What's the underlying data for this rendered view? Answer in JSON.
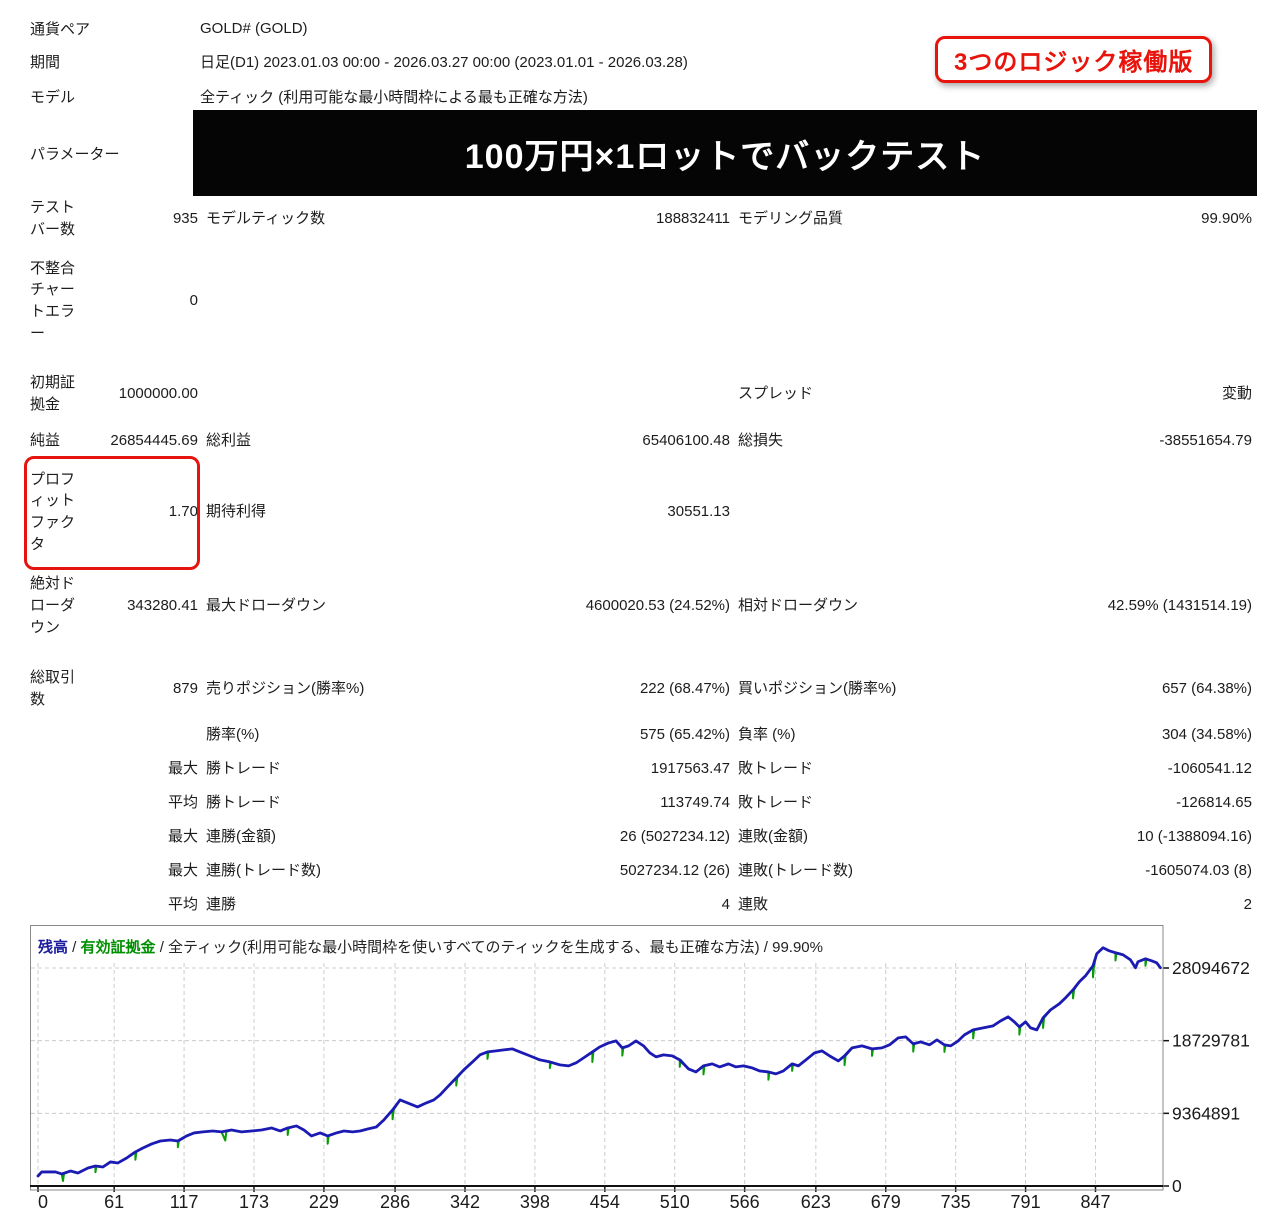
{
  "annotations": {
    "badge": "3つのロジック稼働版",
    "banner": "100万円×1ロットでバックテスト"
  },
  "header": {
    "rows": [
      {
        "label": "通貨ペア",
        "value": "GOLD# (GOLD)"
      },
      {
        "label": "期間",
        "value": "日足(D1) 2023.01.03 00:00 - 2026.03.27 00:00 (2023.01.01 - 2026.03.28)"
      },
      {
        "label": "モデル",
        "value": "全ティック (利用可能な最小時間枠による最も正確な方法)"
      },
      {
        "label": "パラメーター",
        "value": ""
      }
    ]
  },
  "stats": {
    "rows": [
      {
        "l1": "テストバー数",
        "v1": "935",
        "l2": "モデルティック数",
        "v2": "188832411",
        "l3": "モデリング品質",
        "v3": "99.90%"
      },
      {
        "l1": "不整合チャートエラー",
        "v1": "0",
        "l2": "",
        "v2": "",
        "l3": "",
        "v3": ""
      },
      {
        "l1": "初期証拠金",
        "v1": "1000000.00",
        "l2": "",
        "v2": "",
        "l3": "スプレッド",
        "v3": "変動"
      },
      {
        "l1": "純益",
        "v1": "26854445.69",
        "l2": "総利益",
        "v2": "65406100.48",
        "l3": "総損失",
        "v3": "-38551654.79"
      },
      {
        "l1": "プロフィットファクタ",
        "v1": "1.70",
        "l2": "期待利得",
        "v2": "30551.13",
        "l3": "",
        "v3": ""
      },
      {
        "l1": "絶対ドローダウン",
        "v1": "343280.41",
        "l2": "最大ドローダウン",
        "v2": "4600020.53 (24.52%)",
        "l3": "相対ドローダウン",
        "v3": "42.59% (1431514.19)"
      },
      {
        "l1": "総取引数",
        "v1": "879",
        "l2": "売りポジション(勝率%)",
        "v2": "222 (68.47%)",
        "l3": "買いポジション(勝率%)",
        "v3": "657 (64.38%)"
      },
      {
        "l1": "",
        "v1": "",
        "l2": "勝率(%)",
        "v2": "575 (65.42%)",
        "l3": "負率 (%)",
        "v3": "304 (34.58%)"
      },
      {
        "l1": "",
        "v1": "最大",
        "l2": "勝トレード",
        "v2": "1917563.47",
        "l3": "敗トレード",
        "v3": "-1060541.12"
      },
      {
        "l1": "",
        "v1": "平均",
        "l2": "勝トレード",
        "v2": "113749.74",
        "l3": "敗トレード",
        "v3": "-126814.65"
      },
      {
        "l1": "",
        "v1": "最大",
        "l2": "連勝(金額)",
        "v2": "26 (5027234.12)",
        "l3": "連敗(金額)",
        "v3": "10 (-1388094.16)"
      },
      {
        "l1": "",
        "v1": "最大",
        "l2": "連勝(トレード数)",
        "v2": "5027234.12 (26)",
        "l3": "連敗(トレード数)",
        "v3": "-1605074.03 (8)"
      },
      {
        "l1": "",
        "v1": "平均",
        "l2": "連勝",
        "v2": "4",
        "l3": "連敗",
        "v3": "2"
      }
    ]
  },
  "chart_data": {
    "type": "line",
    "legend": {
      "balance_label": "残高",
      "sep1": " / ",
      "equity_label": "有効証拠金",
      "rest": " / 全ティック(利用可能な最小時間枠を使いすべてのティックを生成する、最も正確な方法) / 99.90%"
    },
    "colors": {
      "balance": "#1b1bb3",
      "equity": "#089b08",
      "grid": "#cccccc",
      "axis": "#111111",
      "border": "#8a8a8a",
      "legend_balance": "#1c1c9e",
      "legend_equity": "#008f00"
    },
    "x_ticks": [
      0,
      61,
      117,
      173,
      229,
      286,
      342,
      398,
      454,
      510,
      566,
      623,
      679,
      735,
      791,
      847
    ],
    "y_ticks": [
      0,
      9364891,
      18729781,
      28094672
    ],
    "x_max_bars": 935,
    "series": [
      {
        "name": "残高",
        "points": [
          [
            0,
            1290000
          ],
          [
            3,
            1810000
          ],
          [
            14,
            1810000
          ],
          [
            19,
            1550000
          ],
          [
            26,
            1930000
          ],
          [
            32,
            1680000
          ],
          [
            40,
            2320000
          ],
          [
            46,
            2580000
          ],
          [
            52,
            2450000
          ],
          [
            58,
            3100000
          ],
          [
            64,
            2970000
          ],
          [
            71,
            3610000
          ],
          [
            78,
            4390000
          ],
          [
            84,
            4900000
          ],
          [
            91,
            5420000
          ],
          [
            98,
            5800000
          ],
          [
            106,
            5930000
          ],
          [
            112,
            5800000
          ],
          [
            119,
            6450000
          ],
          [
            125,
            6840000
          ],
          [
            132,
            6970000
          ],
          [
            140,
            7090000
          ],
          [
            147,
            6970000
          ],
          [
            155,
            7220000
          ],
          [
            163,
            6970000
          ],
          [
            171,
            7090000
          ],
          [
            179,
            7220000
          ],
          [
            187,
            7480000
          ],
          [
            194,
            7090000
          ],
          [
            200,
            7480000
          ],
          [
            207,
            7740000
          ],
          [
            213,
            7220000
          ],
          [
            219,
            6450000
          ],
          [
            226,
            6840000
          ],
          [
            232,
            6450000
          ],
          [
            239,
            6840000
          ],
          [
            245,
            7090000
          ],
          [
            252,
            6970000
          ],
          [
            258,
            7090000
          ],
          [
            264,
            7350000
          ],
          [
            271,
            7610000
          ],
          [
            277,
            8510000
          ],
          [
            284,
            9800000
          ],
          [
            290,
            11090000
          ],
          [
            296,
            10710000
          ],
          [
            304,
            10190000
          ],
          [
            311,
            10710000
          ],
          [
            317,
            11090000
          ],
          [
            322,
            11740000
          ],
          [
            328,
            12770000
          ],
          [
            335,
            13930000
          ],
          [
            341,
            14960000
          ],
          [
            348,
            15990000
          ],
          [
            354,
            16900000
          ],
          [
            360,
            17280000
          ],
          [
            367,
            17410000
          ],
          [
            373,
            17540000
          ],
          [
            380,
            17670000
          ],
          [
            386,
            17280000
          ],
          [
            394,
            16770000
          ],
          [
            402,
            16250000
          ],
          [
            410,
            15990000
          ],
          [
            418,
            15610000
          ],
          [
            425,
            15480000
          ],
          [
            431,
            15870000
          ],
          [
            437,
            16510000
          ],
          [
            444,
            17280000
          ],
          [
            450,
            17930000
          ],
          [
            457,
            18440000
          ],
          [
            463,
            18700000
          ],
          [
            468,
            17800000
          ],
          [
            473,
            18060000
          ],
          [
            479,
            18700000
          ],
          [
            485,
            18060000
          ],
          [
            490,
            17160000
          ],
          [
            495,
            16640000
          ],
          [
            501,
            16900000
          ],
          [
            508,
            16770000
          ],
          [
            514,
            16250000
          ],
          [
            521,
            15090000
          ],
          [
            527,
            14700000
          ],
          [
            533,
            15480000
          ],
          [
            540,
            15740000
          ],
          [
            546,
            15350000
          ],
          [
            553,
            15740000
          ],
          [
            559,
            15350000
          ],
          [
            565,
            15480000
          ],
          [
            572,
            15220000
          ],
          [
            578,
            14830000
          ],
          [
            585,
            14700000
          ],
          [
            591,
            14450000
          ],
          [
            597,
            14830000
          ],
          [
            604,
            15740000
          ],
          [
            609,
            15480000
          ],
          [
            615,
            16250000
          ],
          [
            622,
            17160000
          ],
          [
            628,
            17410000
          ],
          [
            634,
            16770000
          ],
          [
            641,
            16120000
          ],
          [
            646,
            16770000
          ],
          [
            652,
            17800000
          ],
          [
            660,
            18060000
          ],
          [
            668,
            17670000
          ],
          [
            676,
            17800000
          ],
          [
            682,
            18190000
          ],
          [
            689,
            19090000
          ],
          [
            695,
            19220000
          ],
          [
            701,
            18320000
          ],
          [
            707,
            18570000
          ],
          [
            714,
            18190000
          ],
          [
            720,
            18830000
          ],
          [
            726,
            18190000
          ],
          [
            731,
            18060000
          ],
          [
            737,
            18700000
          ],
          [
            742,
            19480000
          ],
          [
            749,
            20120000
          ],
          [
            757,
            20380000
          ],
          [
            765,
            20640000
          ],
          [
            771,
            21280000
          ],
          [
            777,
            21800000
          ],
          [
            782,
            21150000
          ],
          [
            786,
            20510000
          ],
          [
            791,
            21150000
          ],
          [
            795,
            20380000
          ],
          [
            800,
            20120000
          ],
          [
            805,
            21670000
          ],
          [
            811,
            22700000
          ],
          [
            818,
            23480000
          ],
          [
            823,
            24250000
          ],
          [
            829,
            25280000
          ],
          [
            834,
            26310000
          ],
          [
            839,
            27090000
          ],
          [
            845,
            28380000
          ],
          [
            848,
            29930000
          ],
          [
            853,
            30700000
          ],
          [
            858,
            30310000
          ],
          [
            863,
            30060000
          ],
          [
            869,
            29800000
          ],
          [
            875,
            29150000
          ],
          [
            879,
            28120000
          ],
          [
            881,
            28900000
          ],
          [
            887,
            29280000
          ],
          [
            892,
            29020000
          ],
          [
            896,
            28770000
          ],
          [
            899,
            28120000
          ]
        ]
      }
    ],
    "equity_spikes": [
      [
        20,
        900000
      ],
      [
        46,
        800000
      ],
      [
        78,
        1000000
      ],
      [
        112,
        800000
      ],
      [
        150,
        1100000
      ],
      [
        200,
        900000
      ],
      [
        232,
        1000000
      ],
      [
        284,
        1200000
      ],
      [
        335,
        1000000
      ],
      [
        360,
        900000
      ],
      [
        410,
        800000
      ],
      [
        444,
        1300000
      ],
      [
        468,
        1000000
      ],
      [
        514,
        900000
      ],
      [
        533,
        1100000
      ],
      [
        585,
        1000000
      ],
      [
        604,
        900000
      ],
      [
        646,
        1200000
      ],
      [
        668,
        900000
      ],
      [
        701,
        1000000
      ],
      [
        726,
        900000
      ],
      [
        749,
        1100000
      ],
      [
        786,
        1000000
      ],
      [
        805,
        1300000
      ],
      [
        829,
        1100000
      ],
      [
        845,
        1500000
      ],
      [
        863,
        1000000
      ],
      [
        887,
        900000
      ]
    ]
  }
}
